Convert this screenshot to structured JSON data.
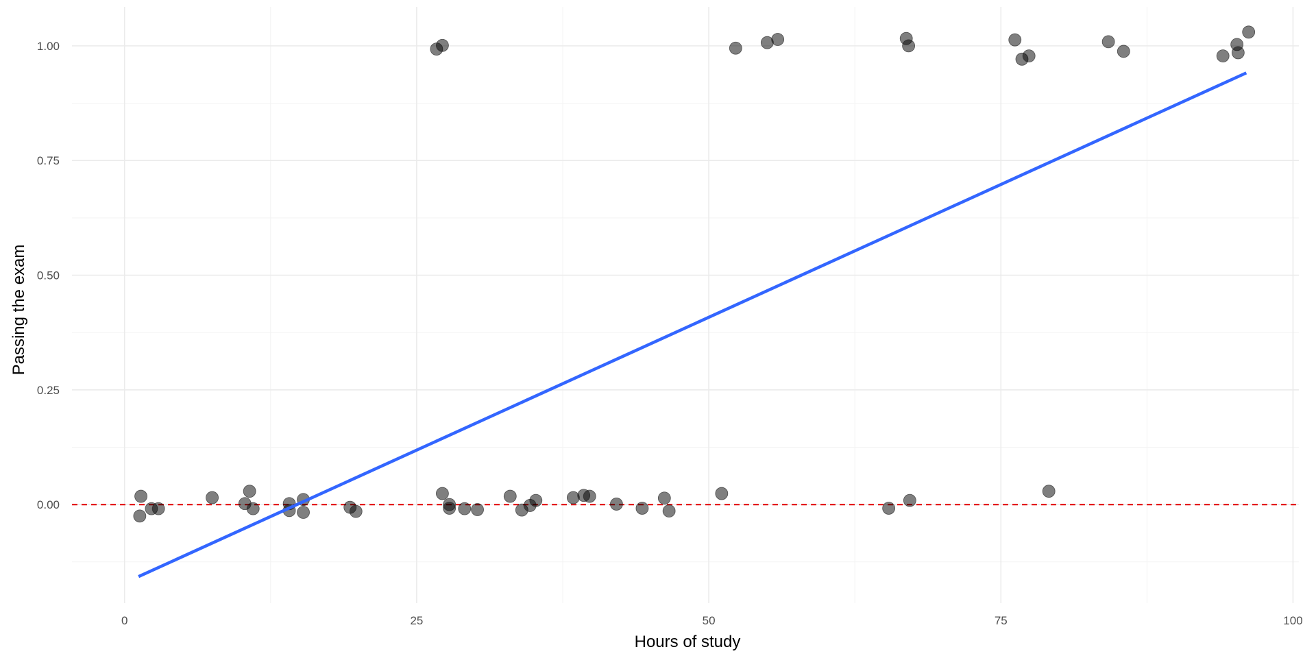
{
  "chart_data": {
    "type": "scatter",
    "title": "",
    "xlabel": "Hours of study",
    "ylabel": "Passing the exam",
    "xlim": [
      -4.5,
      100.5
    ],
    "ylim": [
      -0.215,
      1.085
    ],
    "x_ticks": [
      0,
      25,
      50,
      75,
      100
    ],
    "y_ticks": [
      0.0,
      0.25,
      0.5,
      0.75,
      1.0
    ],
    "x_tick_labels": [
      "0",
      "25",
      "50",
      "75",
      "100"
    ],
    "y_tick_labels": [
      "0.00",
      "0.25",
      "0.50",
      "0.75",
      "1.00"
    ],
    "grid": true,
    "legend": "none",
    "points": {
      "color": "#000000",
      "opacity": 0.5,
      "values": [
        {
          "x": 1.3,
          "y": -0.025
        },
        {
          "x": 1.4,
          "y": 0.018
        },
        {
          "x": 2.3,
          "y": -0.009
        },
        {
          "x": 2.9,
          "y": -0.009
        },
        {
          "x": 7.5,
          "y": 0.015
        },
        {
          "x": 10.3,
          "y": 0.002
        },
        {
          "x": 10.7,
          "y": 0.029
        },
        {
          "x": 11.0,
          "y": -0.009
        },
        {
          "x": 14.1,
          "y": 0.002
        },
        {
          "x": 14.1,
          "y": -0.013
        },
        {
          "x": 15.3,
          "y": 0.011
        },
        {
          "x": 15.3,
          "y": -0.017
        },
        {
          "x": 19.3,
          "y": -0.006
        },
        {
          "x": 19.8,
          "y": -0.015
        },
        {
          "x": 26.7,
          "y": 0.993
        },
        {
          "x": 27.2,
          "y": 1.001
        },
        {
          "x": 27.2,
          "y": 0.024
        },
        {
          "x": 27.8,
          "y": 0.0
        },
        {
          "x": 27.8,
          "y": -0.008
        },
        {
          "x": 29.1,
          "y": -0.009
        },
        {
          "x": 30.2,
          "y": -0.011
        },
        {
          "x": 33.0,
          "y": 0.018
        },
        {
          "x": 34.0,
          "y": -0.012
        },
        {
          "x": 34.7,
          "y": -0.002
        },
        {
          "x": 35.2,
          "y": 0.009
        },
        {
          "x": 38.4,
          "y": 0.015
        },
        {
          "x": 39.3,
          "y": 0.02
        },
        {
          "x": 39.8,
          "y": 0.018
        },
        {
          "x": 42.1,
          "y": 0.001
        },
        {
          "x": 44.3,
          "y": -0.008
        },
        {
          "x": 46.2,
          "y": 0.014
        },
        {
          "x": 46.6,
          "y": -0.014
        },
        {
          "x": 51.1,
          "y": 0.024
        },
        {
          "x": 52.3,
          "y": 0.995
        },
        {
          "x": 55.0,
          "y": 1.007
        },
        {
          "x": 55.9,
          "y": 1.014
        },
        {
          "x": 65.4,
          "y": -0.008
        },
        {
          "x": 66.9,
          "y": 1.016
        },
        {
          "x": 67.1,
          "y": 1.0
        },
        {
          "x": 67.2,
          "y": 0.009
        },
        {
          "x": 76.2,
          "y": 1.013
        },
        {
          "x": 76.8,
          "y": 0.971
        },
        {
          "x": 77.4,
          "y": 0.978
        },
        {
          "x": 79.1,
          "y": 0.029
        },
        {
          "x": 84.2,
          "y": 1.009
        },
        {
          "x": 85.5,
          "y": 0.988
        },
        {
          "x": 94.0,
          "y": 0.978
        },
        {
          "x": 95.2,
          "y": 1.003
        },
        {
          "x": 95.3,
          "y": 0.985
        },
        {
          "x": 96.2,
          "y": 1.03
        }
      ]
    },
    "fit_line": {
      "color": "#3366ff",
      "x": [
        1.2,
        96.0
      ],
      "y": [
        -0.157,
        0.941
      ]
    },
    "reference_line": {
      "color": "#e41a1c",
      "style": "dashed",
      "y": 0.0
    }
  }
}
